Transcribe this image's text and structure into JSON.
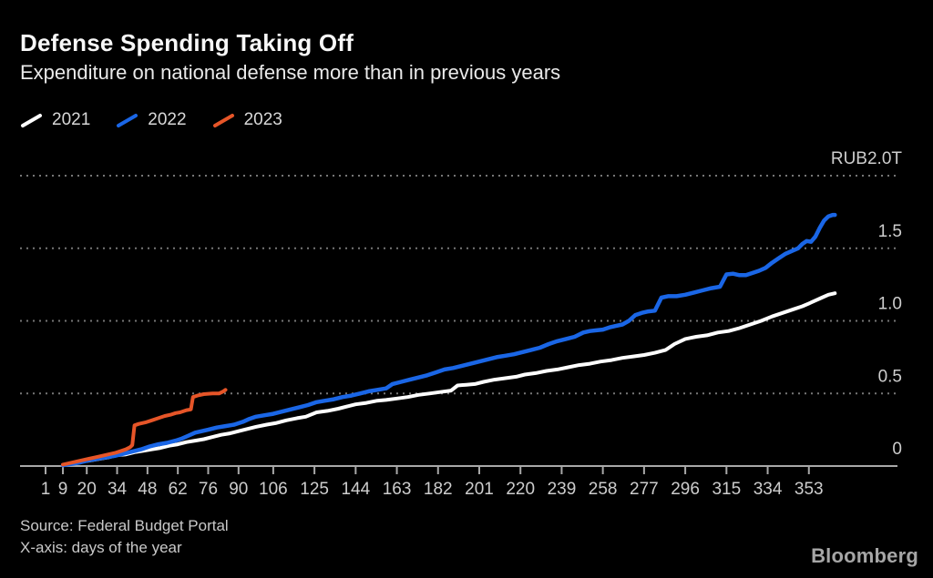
{
  "header": {
    "title": "Defense Spending Taking Off",
    "subtitle": "Expenditure on national defense more than in previous years"
  },
  "legend": {
    "items": [
      {
        "label": "2021",
        "color": "#ffffff"
      },
      {
        "label": "2022",
        "color": "#1a66e6"
      },
      {
        "label": "2023",
        "color": "#e65528"
      }
    ]
  },
  "footer": {
    "source": "Source: Federal Budget Portal",
    "note": "X-axis: days of the year",
    "brand": "Bloomberg"
  },
  "chart_data": {
    "type": "line",
    "title": "Defense Spending Taking Off",
    "subtitle": "Expenditure on national defense more than in previous years",
    "xlabel": "days of the year",
    "ylabel": "RUB trillions",
    "xlim": [
      1,
      366
    ],
    "ylim": [
      0,
      2.0
    ],
    "grid": "dotted-horizontal",
    "legend_position": "top-left",
    "y_ticks": [
      {
        "value": 2.0,
        "label": "RUB2.0T"
      },
      {
        "value": 1.5,
        "label": "1.5"
      },
      {
        "value": 1.0,
        "label": "1.0"
      },
      {
        "value": 0.5,
        "label": "0.5"
      },
      {
        "value": 0.0,
        "label": "0"
      }
    ],
    "x_ticks": [
      1,
      9,
      20,
      34,
      48,
      62,
      76,
      90,
      106,
      125,
      144,
      163,
      182,
      201,
      220,
      239,
      258,
      277,
      296,
      315,
      334,
      353
    ],
    "series": [
      {
        "name": "2021",
        "color": "#ffffff",
        "points": [
          [
            9,
            0.005
          ],
          [
            14,
            0.02
          ],
          [
            18,
            0.03
          ],
          [
            22,
            0.04
          ],
          [
            26,
            0.05
          ],
          [
            30,
            0.06
          ],
          [
            34,
            0.075
          ],
          [
            38,
            0.08
          ],
          [
            42,
            0.095
          ],
          [
            46,
            0.105
          ],
          [
            50,
            0.115
          ],
          [
            54,
            0.125
          ],
          [
            58,
            0.14
          ],
          [
            62,
            0.15
          ],
          [
            66,
            0.165
          ],
          [
            70,
            0.175
          ],
          [
            74,
            0.185
          ],
          [
            78,
            0.2
          ],
          [
            82,
            0.215
          ],
          [
            86,
            0.225
          ],
          [
            90,
            0.24
          ],
          [
            94,
            0.255
          ],
          [
            98,
            0.27
          ],
          [
            103,
            0.285
          ],
          [
            107,
            0.295
          ],
          [
            112,
            0.315
          ],
          [
            117,
            0.33
          ],
          [
            121,
            0.34
          ],
          [
            126,
            0.37
          ],
          [
            131,
            0.38
          ],
          [
            136,
            0.395
          ],
          [
            140,
            0.41
          ],
          [
            144,
            0.425
          ],
          [
            149,
            0.435
          ],
          [
            154,
            0.45
          ],
          [
            158,
            0.455
          ],
          [
            163,
            0.465
          ],
          [
            168,
            0.475
          ],
          [
            173,
            0.49
          ],
          [
            178,
            0.5
          ],
          [
            183,
            0.51
          ],
          [
            188,
            0.52
          ],
          [
            191,
            0.555
          ],
          [
            195,
            0.56
          ],
          [
            199,
            0.565
          ],
          [
            203,
            0.58
          ],
          [
            208,
            0.595
          ],
          [
            213,
            0.605
          ],
          [
            218,
            0.615
          ],
          [
            222,
            0.63
          ],
          [
            227,
            0.64
          ],
          [
            232,
            0.655
          ],
          [
            237,
            0.665
          ],
          [
            242,
            0.68
          ],
          [
            247,
            0.695
          ],
          [
            252,
            0.705
          ],
          [
            257,
            0.72
          ],
          [
            262,
            0.73
          ],
          [
            267,
            0.745
          ],
          [
            272,
            0.755
          ],
          [
            277,
            0.765
          ],
          [
            282,
            0.78
          ],
          [
            287,
            0.8
          ],
          [
            291,
            0.84
          ],
          [
            296,
            0.875
          ],
          [
            301,
            0.89
          ],
          [
            306,
            0.9
          ],
          [
            311,
            0.92
          ],
          [
            316,
            0.93
          ],
          [
            321,
            0.95
          ],
          [
            326,
            0.975
          ],
          [
            331,
            1.0
          ],
          [
            336,
            1.03
          ],
          [
            341,
            1.055
          ],
          [
            346,
            1.08
          ],
          [
            350,
            1.1
          ],
          [
            353,
            1.12
          ],
          [
            356,
            1.14
          ],
          [
            359,
            1.16
          ],
          [
            362,
            1.18
          ],
          [
            365,
            1.19
          ]
        ]
      },
      {
        "name": "2022",
        "color": "#1a66e6",
        "points": [
          [
            9,
            0.005
          ],
          [
            13,
            0.015
          ],
          [
            17,
            0.025
          ],
          [
            21,
            0.04
          ],
          [
            25,
            0.05
          ],
          [
            29,
            0.06
          ],
          [
            33,
            0.07
          ],
          [
            37,
            0.085
          ],
          [
            41,
            0.1
          ],
          [
            45,
            0.115
          ],
          [
            49,
            0.135
          ],
          [
            53,
            0.15
          ],
          [
            57,
            0.16
          ],
          [
            61,
            0.175
          ],
          [
            64,
            0.19
          ],
          [
            67,
            0.21
          ],
          [
            70,
            0.23
          ],
          [
            73,
            0.24
          ],
          [
            76,
            0.25
          ],
          [
            80,
            0.265
          ],
          [
            84,
            0.275
          ],
          [
            88,
            0.285
          ],
          [
            92,
            0.305
          ],
          [
            95,
            0.325
          ],
          [
            98,
            0.34
          ],
          [
            102,
            0.35
          ],
          [
            106,
            0.36
          ],
          [
            110,
            0.375
          ],
          [
            114,
            0.39
          ],
          [
            118,
            0.405
          ],
          [
            122,
            0.42
          ],
          [
            126,
            0.44
          ],
          [
            130,
            0.45
          ],
          [
            134,
            0.46
          ],
          [
            138,
            0.475
          ],
          [
            142,
            0.485
          ],
          [
            146,
            0.5
          ],
          [
            150,
            0.515
          ],
          [
            154,
            0.525
          ],
          [
            158,
            0.535
          ],
          [
            161,
            0.565
          ],
          [
            165,
            0.58
          ],
          [
            169,
            0.595
          ],
          [
            173,
            0.61
          ],
          [
            177,
            0.625
          ],
          [
            181,
            0.645
          ],
          [
            185,
            0.665
          ],
          [
            189,
            0.675
          ],
          [
            193,
            0.69
          ],
          [
            197,
            0.705
          ],
          [
            201,
            0.72
          ],
          [
            205,
            0.735
          ],
          [
            209,
            0.75
          ],
          [
            213,
            0.76
          ],
          [
            217,
            0.77
          ],
          [
            221,
            0.785
          ],
          [
            225,
            0.8
          ],
          [
            229,
            0.815
          ],
          [
            233,
            0.84
          ],
          [
            237,
            0.86
          ],
          [
            241,
            0.875
          ],
          [
            245,
            0.89
          ],
          [
            249,
            0.92
          ],
          [
            252,
            0.93
          ],
          [
            255,
            0.935
          ],
          [
            258,
            0.94
          ],
          [
            261,
            0.955
          ],
          [
            264,
            0.965
          ],
          [
            267,
            0.975
          ],
          [
            270,
            1.0
          ],
          [
            273,
            1.04
          ],
          [
            276,
            1.055
          ],
          [
            279,
            1.065
          ],
          [
            282,
            1.07
          ],
          [
            285,
            1.16
          ],
          [
            288,
            1.17
          ],
          [
            292,
            1.17
          ],
          [
            296,
            1.18
          ],
          [
            300,
            1.195
          ],
          [
            304,
            1.21
          ],
          [
            308,
            1.225
          ],
          [
            312,
            1.235
          ],
          [
            315,
            1.32
          ],
          [
            318,
            1.325
          ],
          [
            321,
            1.315
          ],
          [
            324,
            1.315
          ],
          [
            327,
            1.33
          ],
          [
            330,
            1.345
          ],
          [
            333,
            1.365
          ],
          [
            336,
            1.4
          ],
          [
            339,
            1.43
          ],
          [
            342,
            1.46
          ],
          [
            345,
            1.48
          ],
          [
            348,
            1.5
          ],
          [
            350,
            1.53
          ],
          [
            352,
            1.55
          ],
          [
            354,
            1.545
          ],
          [
            356,
            1.58
          ],
          [
            358,
            1.64
          ],
          [
            360,
            1.69
          ],
          [
            362,
            1.72
          ],
          [
            364,
            1.73
          ],
          [
            365,
            1.73
          ]
        ]
      },
      {
        "name": "2023",
        "color": "#e65528",
        "points": [
          [
            9,
            0.01
          ],
          [
            12,
            0.02
          ],
          [
            15,
            0.03
          ],
          [
            18,
            0.04
          ],
          [
            21,
            0.05
          ],
          [
            24,
            0.06
          ],
          [
            27,
            0.07
          ],
          [
            30,
            0.08
          ],
          [
            33,
            0.09
          ],
          [
            36,
            0.105
          ],
          [
            38,
            0.115
          ],
          [
            40,
            0.13
          ],
          [
            41,
            0.145
          ],
          [
            42,
            0.28
          ],
          [
            44,
            0.29
          ],
          [
            47,
            0.3
          ],
          [
            50,
            0.315
          ],
          [
            53,
            0.33
          ],
          [
            56,
            0.345
          ],
          [
            59,
            0.355
          ],
          [
            61,
            0.365
          ],
          [
            63,
            0.37
          ],
          [
            66,
            0.385
          ],
          [
            68,
            0.39
          ],
          [
            69,
            0.475
          ],
          [
            71,
            0.485
          ],
          [
            74,
            0.495
          ],
          [
            78,
            0.5
          ],
          [
            81,
            0.5
          ],
          [
            83,
            0.515
          ],
          [
            84,
            0.525
          ]
        ]
      }
    ]
  }
}
